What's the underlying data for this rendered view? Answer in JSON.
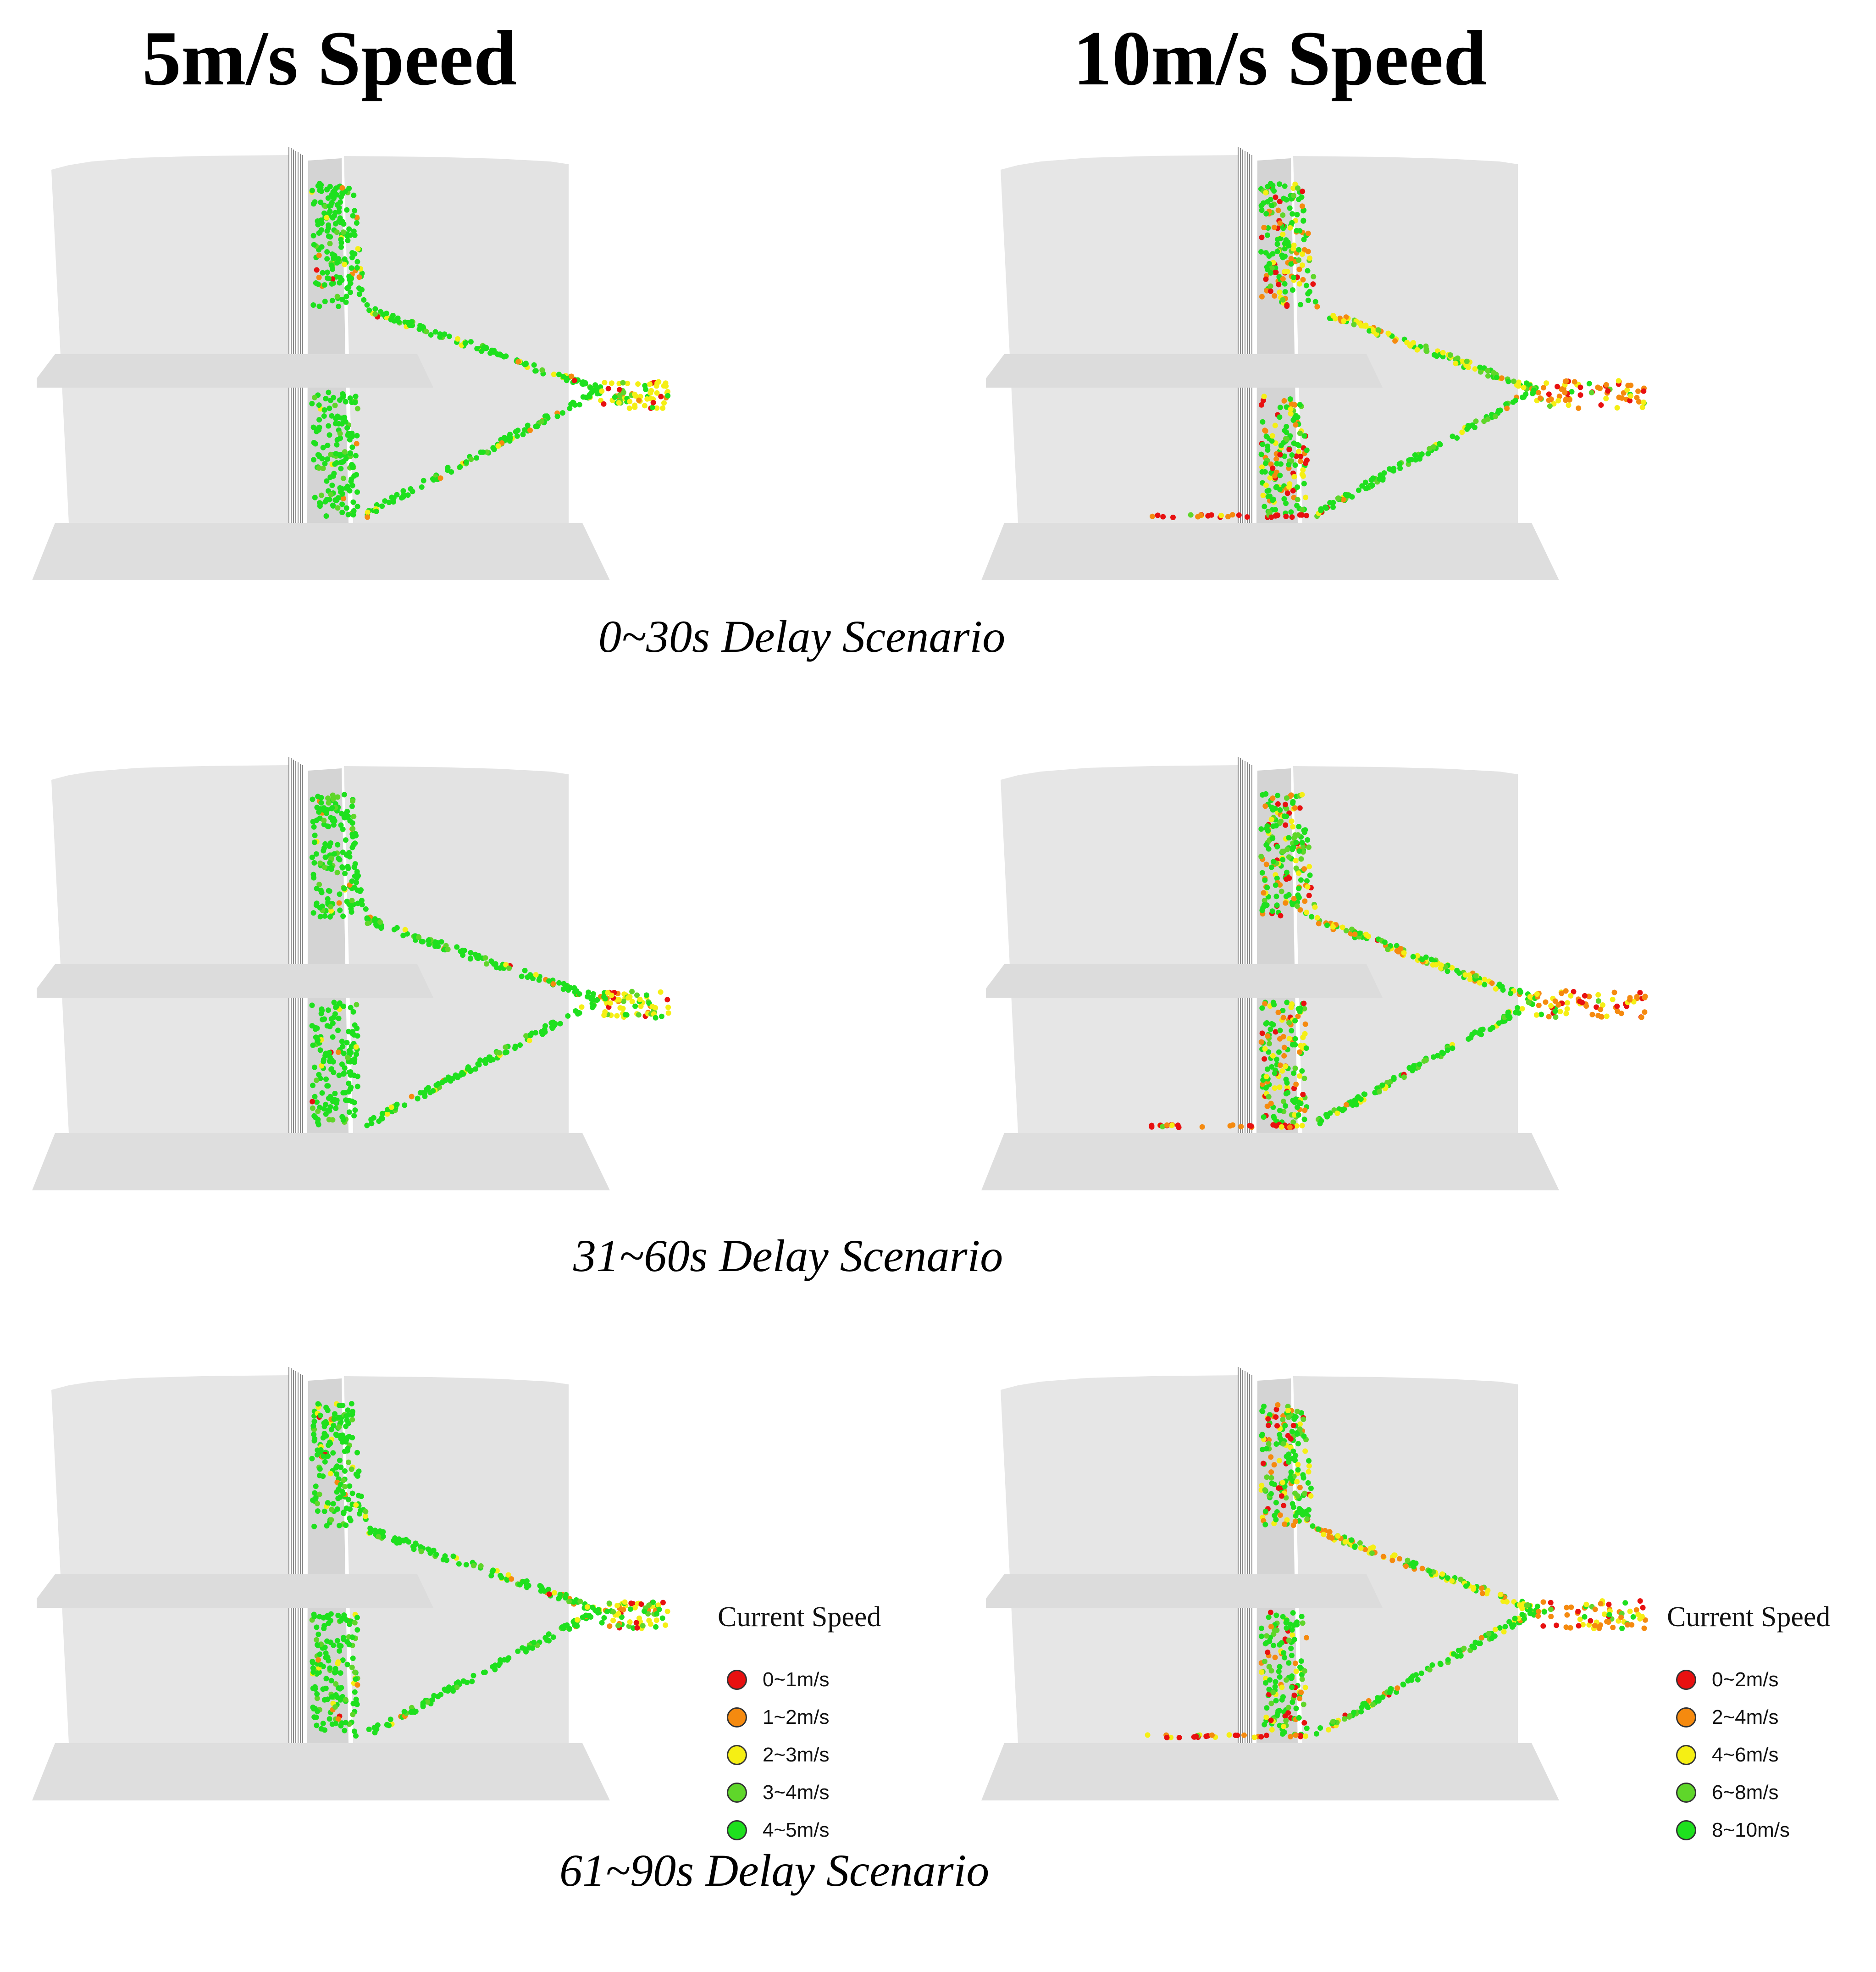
{
  "headers": {
    "left": "5m/s Speed",
    "right": "10m/s Speed"
  },
  "scenarios": [
    {
      "label": "0~30s Delay Scenario"
    },
    {
      "label": "31~60s Delay Scenario"
    },
    {
      "label": "61~90s Delay Scenario"
    }
  ],
  "legend_title": "Current Speed",
  "legend_5ms": [
    {
      "label": "0~1m/s",
      "color": "#e81010"
    },
    {
      "label": "1~2m/s",
      "color": "#f58a0f"
    },
    {
      "label": "2~3m/s",
      "color": "#f5ef14"
    },
    {
      "label": "3~4m/s",
      "color": "#5fd62a"
    },
    {
      "label": "4~5m/s",
      "color": "#1ee01e"
    }
  ],
  "legend_10ms": [
    {
      "label": "0~2m/s",
      "color": "#e81010"
    },
    {
      "label": "2~4m/s",
      "color": "#f58a0f"
    },
    {
      "label": "4~6m/s",
      "color": "#f5ef14"
    },
    {
      "label": "6~8m/s",
      "color": "#5fd62a"
    },
    {
      "label": "8~10m/s",
      "color": "#1ee01e"
    }
  ]
}
